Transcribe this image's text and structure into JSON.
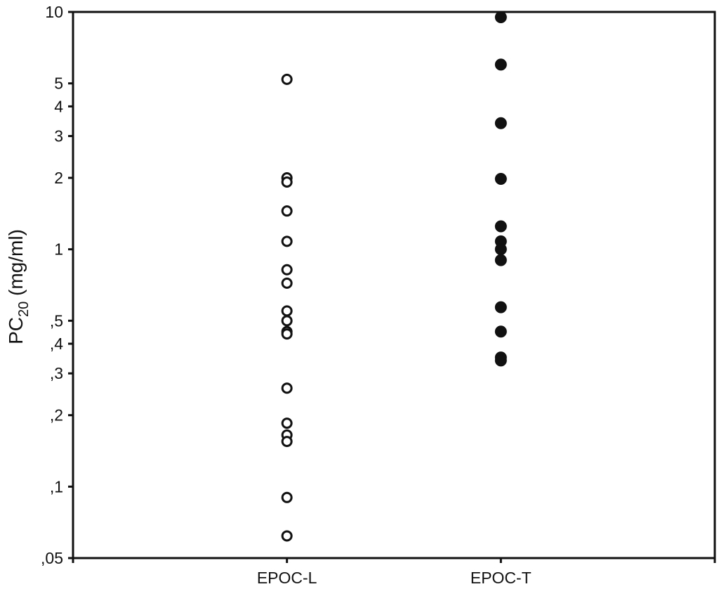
{
  "chart_data": {
    "type": "scatter",
    "title": "",
    "xlabel": "",
    "ylabel": {
      "base": "PC",
      "subscript": "20",
      "unit": " (mg/ml)"
    },
    "yscale": "log",
    "ylim": [
      0.05,
      10
    ],
    "categories": [
      "EPOC-L",
      "EPOC-T"
    ],
    "y_ticks": [
      {
        "value": 10,
        "label": "10"
      },
      {
        "value": 5,
        "label": "5"
      },
      {
        "value": 4,
        "label": "4"
      },
      {
        "value": 3,
        "label": "3"
      },
      {
        "value": 2,
        "label": "2"
      },
      {
        "value": 1,
        "label": "1"
      },
      {
        "value": 0.5,
        "label": ",5"
      },
      {
        "value": 0.4,
        "label": ",4"
      },
      {
        "value": 0.3,
        "label": ",3"
      },
      {
        "value": 0.2,
        "label": ",2"
      },
      {
        "value": 0.1,
        "label": ",1"
      },
      {
        "value": 0.05,
        "label": ",05"
      }
    ],
    "grid": false,
    "legend": "none",
    "series": [
      {
        "category": "EPOC-L",
        "marker": "open-circle",
        "color": "#111111",
        "values": [
          5.2,
          2.0,
          1.92,
          1.45,
          1.08,
          0.82,
          0.72,
          0.55,
          0.5,
          0.45,
          0.44,
          0.26,
          0.185,
          0.165,
          0.155,
          0.09,
          0.062
        ]
      },
      {
        "category": "EPOC-T",
        "marker": "filled-circle",
        "color": "#111111",
        "values": [
          9.5,
          6.0,
          3.4,
          1.98,
          1.25,
          1.08,
          1.0,
          0.9,
          0.57,
          0.45,
          0.35,
          0.34
        ]
      }
    ]
  }
}
